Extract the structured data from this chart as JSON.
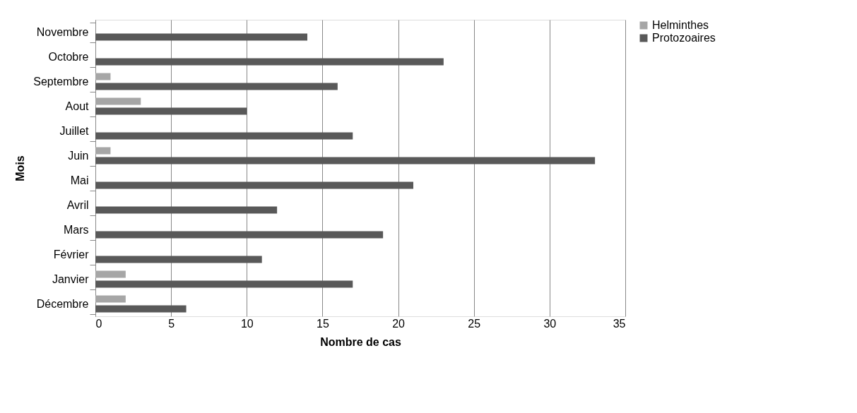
{
  "chart_data": {
    "type": "bar",
    "orientation": "horizontal",
    "xlabel": "Nombre de cas",
    "ylabel": "Mois",
    "categories": [
      "Novembre",
      "Octobre",
      "Septembre",
      "Aout",
      "Juillet",
      "Juin",
      "Mai",
      "Avril",
      "Mars",
      "Février",
      "Janvier",
      "Décembre"
    ],
    "series": [
      {
        "name": "Helminthes",
        "color": "#a6a6a6",
        "values": [
          null,
          null,
          1,
          3,
          null,
          1,
          null,
          null,
          null,
          null,
          2,
          2
        ]
      },
      {
        "name": "Protozoaires",
        "color": "#595959",
        "values": [
          14,
          23,
          16,
          10,
          17,
          33,
          21,
          12,
          19,
          11,
          17,
          6
        ]
      }
    ],
    "xlim": [
      0,
      35
    ],
    "xticks": [
      0,
      5,
      10,
      15,
      20,
      25,
      30,
      35
    ],
    "grid": "x",
    "legend": "right"
  }
}
